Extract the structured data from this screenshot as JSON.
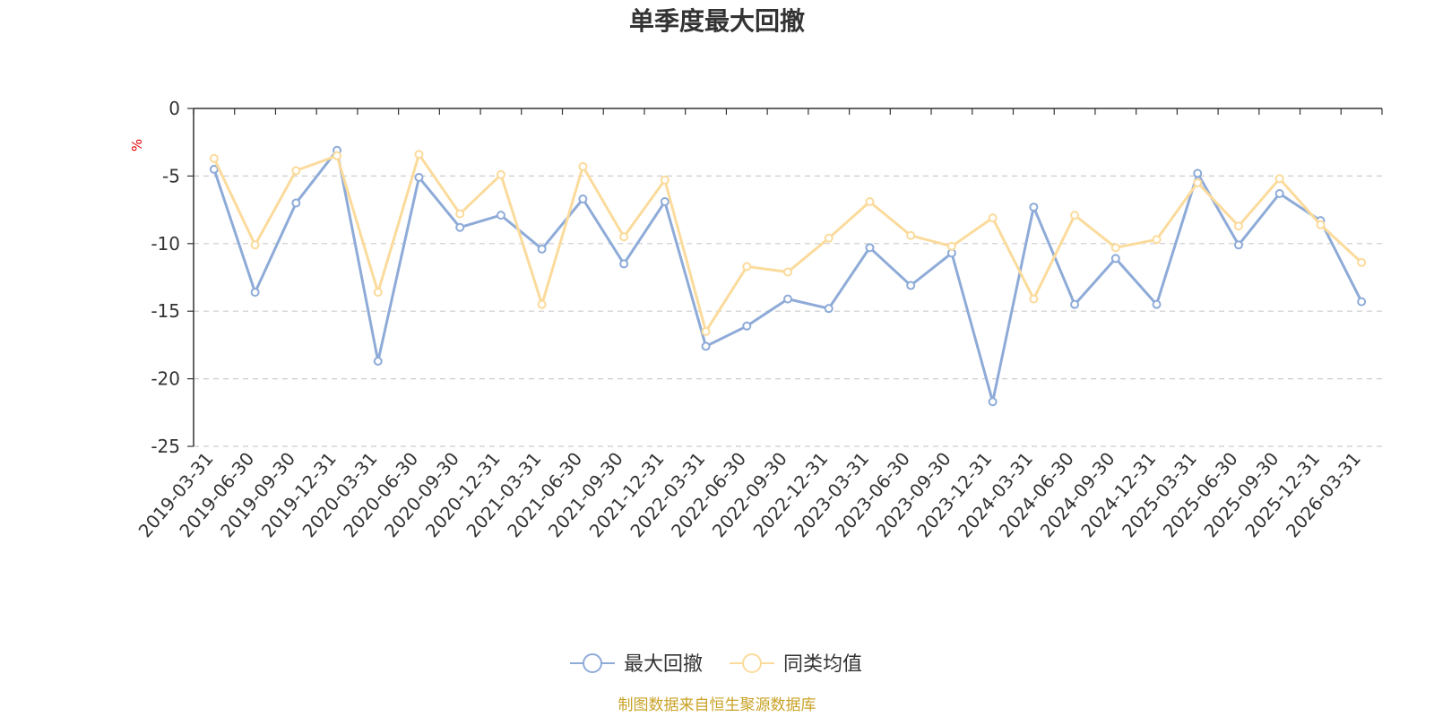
{
  "chart_data": {
    "type": "line",
    "title": "单季度最大回撤",
    "ylabel": "%",
    "ylim": [
      -25,
      0
    ],
    "yticks": [
      0,
      -5,
      -10,
      -15,
      -20,
      -25
    ],
    "grid": true,
    "legend_position": "bottom-center",
    "categories": [
      "2019-03-31",
      "2019-06-30",
      "2019-09-30",
      "2019-12-31",
      "2020-03-31",
      "2020-06-30",
      "2020-09-30",
      "2020-12-31",
      "2021-03-31",
      "2021-06-30",
      "2021-09-30",
      "2021-12-31",
      "2022-03-31",
      "2022-06-30",
      "2022-09-30",
      "2022-12-31",
      "2023-03-31",
      "2023-06-30",
      "2023-09-30",
      "2023-12-31",
      "2024-03-31",
      "2024-06-30",
      "2024-09-30",
      "2024-12-31",
      "2025-03-31",
      "2025-06-30",
      "2025-09-30",
      "2025-12-31",
      "2026-03-31"
    ],
    "series": [
      {
        "name": "最大回撤",
        "color": "#8eabd8",
        "values": [
          -4.5,
          -13.6,
          -7.0,
          -3.1,
          -18.7,
          -5.1,
          -8.8,
          -7.9,
          -10.4,
          -6.7,
          -11.5,
          -6.9,
          -17.6,
          -16.1,
          -14.1,
          -14.8,
          -10.3,
          -13.1,
          -10.7,
          -21.7,
          -7.3,
          -14.5,
          -11.1,
          -14.5,
          -4.8,
          -10.1,
          -6.3,
          -8.3,
          -14.3
        ]
      },
      {
        "name": "同类均值",
        "color": "#fbdb9c",
        "values": [
          -3.7,
          -10.1,
          -4.6,
          -3.5,
          -13.6,
          -3.4,
          -7.8,
          -4.9,
          -14.5,
          -4.3,
          -9.5,
          -5.3,
          -16.5,
          -11.7,
          -12.1,
          -9.6,
          -6.9,
          -9.4,
          -10.2,
          -8.1,
          -14.1,
          -7.9,
          -10.3,
          -9.7,
          -5.5,
          -8.7,
          -5.2,
          -8.6,
          -11.4
        ]
      }
    ],
    "source": "制图数据来自恒生聚源数据库"
  }
}
